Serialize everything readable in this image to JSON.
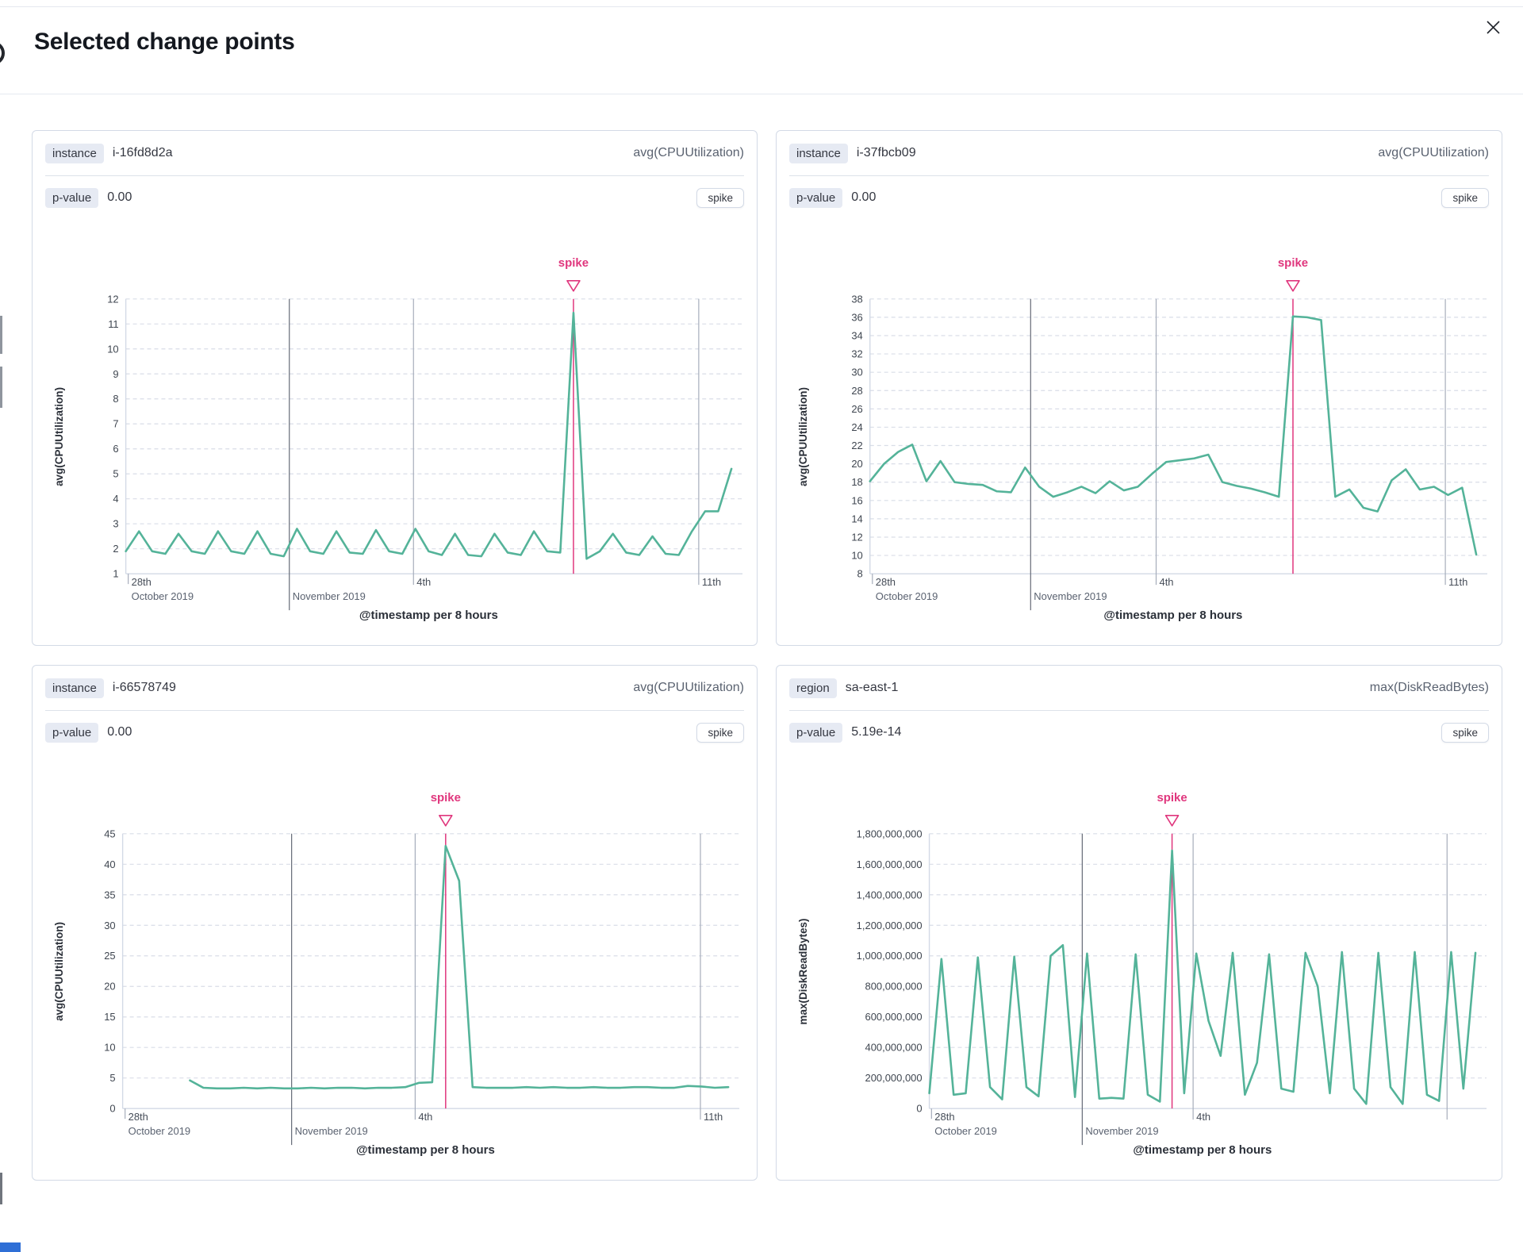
{
  "modal": {
    "title": "Selected change points",
    "close_icon_name": "close-icon"
  },
  "colors": {
    "line": "#54b399",
    "spike": "#e0367d",
    "grid_dashed": "#d9dde7",
    "axis": "#d3dae6",
    "y_tick_text": "#3f4650",
    "x_tick_text": "#464d58",
    "x_subtick_text": "#5a6270",
    "axis_title": "#2b3039",
    "date_line_dark": "#646a76",
    "date_line_light": "#a6adbb"
  },
  "chart_data": [
    {
      "type": "line",
      "key_label": "instance",
      "key_value": "i-16fd8d2a",
      "metric": "avg(CPUUtilization)",
      "p_value_label": "p-value",
      "p_value": "0.00",
      "change_type": "spike",
      "ylabel": "avg(CPUUtilization)",
      "xlabel": "@timestamp per 8 hours",
      "y_min": 1,
      "y_max": 12,
      "y_step": 1,
      "x_ticks": [
        {
          "pos": 0.004,
          "label": "28th",
          "sublabel": "October 2019",
          "tick": true
        },
        {
          "pos": 0.27,
          "sublabel": "November 2019",
          "line": "dark"
        },
        {
          "pos": 0.475,
          "label": "4th",
          "line": "light"
        },
        {
          "pos": 0.946,
          "label": "11th",
          "line": "light"
        }
      ],
      "values": [
        1.9,
        2.7,
        1.9,
        1.8,
        2.6,
        1.9,
        1.8,
        2.7,
        1.9,
        1.8,
        2.7,
        1.8,
        1.7,
        2.8,
        1.9,
        1.8,
        2.7,
        1.85,
        1.8,
        2.75,
        1.9,
        1.8,
        2.8,
        1.9,
        1.75,
        2.6,
        1.75,
        1.7,
        2.6,
        1.85,
        1.75,
        2.7,
        1.9,
        1.85,
        11.45,
        1.6,
        1.9,
        2.6,
        1.85,
        1.75,
        2.5,
        1.8,
        1.75,
        2.7,
        3.5,
        3.5,
        5.2
      ]
    },
    {
      "type": "line",
      "key_label": "instance",
      "key_value": "i-37fbcb09",
      "metric": "avg(CPUUtilization)",
      "p_value_label": "p-value",
      "p_value": "0.00",
      "change_type": "spike",
      "ylabel": "avg(CPUUtilization)",
      "xlabel": "@timestamp per 8 hours",
      "y_min": 8,
      "y_max": 38,
      "y_step": 2,
      "x_ticks": [
        {
          "pos": 0.004,
          "label": "28th",
          "sublabel": "October 2019",
          "tick": true
        },
        {
          "pos": 0.265,
          "sublabel": "November 2019",
          "line": "dark"
        },
        {
          "pos": 0.472,
          "label": "4th",
          "line": "light"
        },
        {
          "pos": 0.949,
          "label": "11th",
          "line": "light"
        }
      ],
      "values": [
        18.1,
        20.0,
        21.3,
        22.1,
        18.1,
        20.3,
        18.0,
        17.8,
        17.7,
        17.0,
        16.9,
        19.6,
        17.5,
        16.4,
        16.9,
        17.5,
        16.8,
        18.1,
        17.1,
        17.5,
        18.9,
        20.2,
        20.4,
        20.6,
        21.0,
        18.0,
        17.6,
        17.3,
        16.9,
        16.4,
        36.1,
        36.0,
        35.7,
        16.4,
        17.2,
        15.2,
        14.8,
        18.2,
        19.4,
        17.2,
        17.5,
        16.6,
        17.4,
        10.1
      ]
    },
    {
      "type": "line",
      "key_label": "instance",
      "key_value": "i-66578749",
      "metric": "avg(CPUUtilization)",
      "p_value_label": "p-value",
      "p_value": "0.00",
      "change_type": "spike",
      "ylabel": "avg(CPUUtilization)",
      "xlabel": "@timestamp per 8 hours",
      "y_min": 0,
      "y_max": 45,
      "y_step": 5,
      "x_ticks": [
        {
          "pos": 0.004,
          "label": "28th",
          "sublabel": "October 2019",
          "tick": true
        },
        {
          "pos": 0.279,
          "sublabel": "November 2019",
          "line": "dark"
        },
        {
          "pos": 0.483,
          "label": "4th",
          "line": "light"
        },
        {
          "pos": 0.954,
          "label": "11th",
          "line": "light"
        }
      ],
      "values": [
        null,
        null,
        null,
        null,
        null,
        4.6,
        3.4,
        3.3,
        3.3,
        3.4,
        3.3,
        3.4,
        3.3,
        3.3,
        3.4,
        3.3,
        3.4,
        3.4,
        3.3,
        3.4,
        3.4,
        3.5,
        4.2,
        4.3,
        43.0,
        37.3,
        3.5,
        3.4,
        3.4,
        3.4,
        3.5,
        3.4,
        3.5,
        3.4,
        3.4,
        3.5,
        3.4,
        3.4,
        3.5,
        3.5,
        3.4,
        3.4,
        3.7,
        3.6,
        3.4,
        3.5
      ]
    },
    {
      "type": "line",
      "key_label": "region",
      "key_value": "sa-east-1",
      "metric": "max(DiskReadBytes)",
      "p_value_label": "p-value",
      "p_value": "5.19e-14",
      "change_type": "spike",
      "ylabel": "max(DiskReadBytes)",
      "xlabel": "@timestamp per 8 hours",
      "y_min": 0,
      "y_max": 1800000000,
      "y_step": 200000000,
      "x_ticks": [
        {
          "pos": 0.004,
          "label": "28th",
          "sublabel": "October 2019",
          "tick": true
        },
        {
          "pos": 0.28,
          "sublabel": "November 2019",
          "line": "dark"
        },
        {
          "pos": 0.483,
          "label": "4th",
          "line": "light"
        },
        {
          "pos": 0.948,
          "line": "light"
        }
      ],
      "values": [
        100000000,
        980000000,
        90000000,
        100000000,
        990000000,
        140000000,
        60000000,
        995000000,
        140000000,
        80000000,
        1000000000,
        1070000000,
        75000000,
        1015000000,
        65000000,
        70000000,
        65000000,
        1010000000,
        90000000,
        45000000,
        1690000000,
        100000000,
        1015000000,
        575000000,
        345000000,
        1020000000,
        90000000,
        300000000,
        1010000000,
        130000000,
        110000000,
        1020000000,
        800000000,
        100000000,
        1025000000,
        130000000,
        30000000,
        1020000000,
        140000000,
        30000000,
        1025000000,
        90000000,
        50000000,
        1025000000,
        130000000,
        1020000000
      ]
    }
  ]
}
